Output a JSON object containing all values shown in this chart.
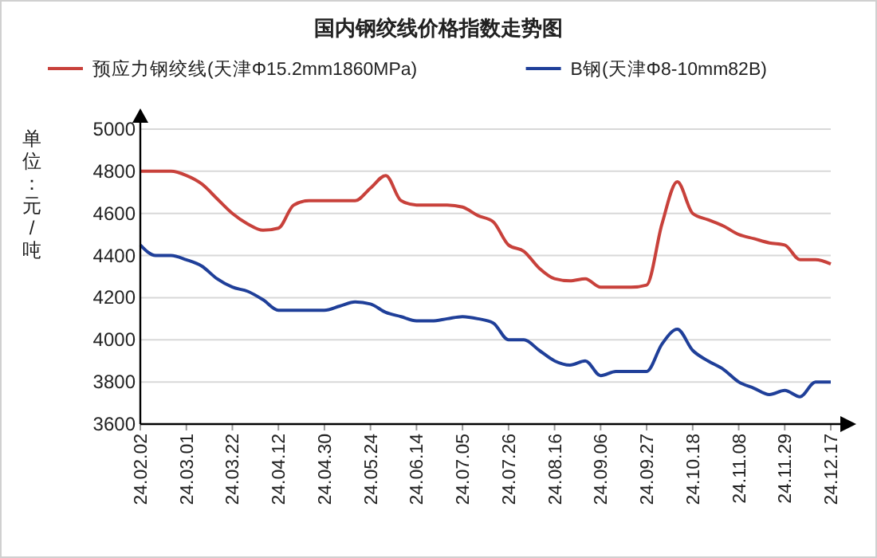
{
  "chart_data": {
    "type": "line",
    "title": "国内钢绞线价格指数走势图",
    "ylabel": "单位：元/吨",
    "categories": [
      "24.02.02",
      null,
      null,
      "24.03.01",
      null,
      null,
      "24.03.22",
      null,
      null,
      "24.04.12",
      null,
      null,
      "24.04.30",
      null,
      null,
      "24.05.24",
      null,
      null,
      "24.06.14",
      null,
      null,
      "24.07.05",
      null,
      null,
      "24.07.26",
      null,
      null,
      "24.08.16",
      null,
      null,
      "24.09.06",
      null,
      null,
      "24.09.27",
      null,
      null,
      "24.10.18",
      null,
      null,
      "24.11.08",
      null,
      null,
      "24.11.29",
      null,
      null,
      "24.12.17"
    ],
    "series": [
      {
        "name": "预应力钢绞线(天津Φ15.2mm1860MPa)",
        "color": "#c8413b",
        "values": [
          4800,
          4800,
          4800,
          4780,
          4740,
          4670,
          4600,
          4550,
          4520,
          4530,
          4640,
          4660,
          4660,
          4660,
          4660,
          4720,
          4780,
          4660,
          4640,
          4640,
          4640,
          4630,
          4590,
          4560,
          4450,
          4420,
          4340,
          4290,
          4280,
          4290,
          4250,
          4250,
          4250,
          4260,
          4550,
          4750,
          4600,
          4570,
          4540,
          4500,
          4480,
          4460,
          4450,
          4380,
          4380,
          4360
        ]
      },
      {
        "name": "B钢(天津Φ8-10mm82B)",
        "color": "#1f3f99",
        "values": [
          4450,
          4400,
          4400,
          4380,
          4350,
          4290,
          4250,
          4230,
          4190,
          4140,
          4140,
          4140,
          4140,
          4160,
          4180,
          4170,
          4130,
          4110,
          4090,
          4090,
          4100,
          4110,
          4100,
          4080,
          4000,
          4000,
          3950,
          3900,
          3880,
          3900,
          3830,
          3850,
          3850,
          3850,
          3980,
          4050,
          3950,
          3900,
          3860,
          3800,
          3770,
          3740,
          3760,
          3730,
          3800,
          3800
        ]
      }
    ],
    "ylim": [
      3600,
      5000
    ],
    "yticks": [
      3600,
      3800,
      4000,
      4200,
      4400,
      4600,
      4800,
      5000
    ],
    "grid": "y",
    "legend": "top",
    "marker": "none",
    "line_style": "solid"
  }
}
